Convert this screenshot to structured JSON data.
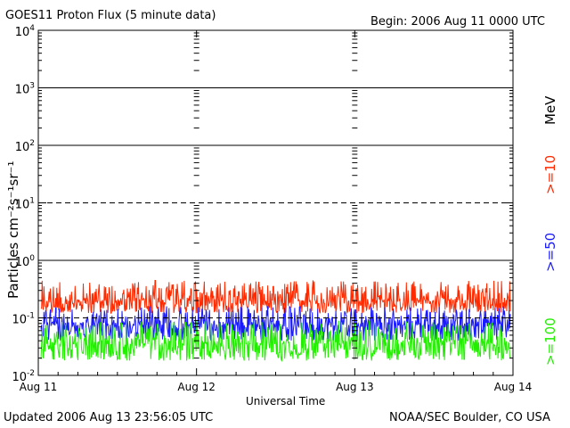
{
  "header": {
    "title": "GOES11 Proton Flux (5 minute data)",
    "begin": "Begin: 2006 Aug 11 0000 UTC"
  },
  "footer": {
    "updated": "Updated 2006 Aug 13 23:56:05 UTC",
    "credit": "NOAA/SEC Boulder, CO USA"
  },
  "chart_data": {
    "type": "line",
    "title": "GOES11 Proton Flux (5 minute data)",
    "xlabel": "Universal Time",
    "ylabel": "Particles cm⁻²s⁻¹sr⁻¹",
    "y_scale": "log",
    "ylim": [
      0.01,
      10000
    ],
    "y_ticks": [
      {
        "base": "10",
        "exp": "-2",
        "value": 0.01
      },
      {
        "base": "10",
        "exp": "-1",
        "value": 0.1
      },
      {
        "base": "10",
        "exp": "0",
        "value": 1
      },
      {
        "base": "10",
        "exp": "1",
        "value": 10
      },
      {
        "base": "10",
        "exp": "2",
        "value": 100
      },
      {
        "base": "10",
        "exp": "3",
        "value": 1000
      },
      {
        "base": "10",
        "exp": "4",
        "value": 10000
      }
    ],
    "x_ticks": [
      "Aug 11",
      "Aug 12",
      "Aug 13",
      "Aug 14"
    ],
    "horizontal_lines": [
      {
        "value": 10,
        "style": "dashed"
      },
      {
        "value": 0.1,
        "style": "dashed"
      },
      {
        "value": 1,
        "style": "solid"
      },
      {
        "value": 100,
        "style": "solid"
      },
      {
        "value": 1000,
        "style": "solid"
      }
    ],
    "energy_unit": "MeV",
    "series": [
      {
        "name": ">=10",
        "color": "#ff2a00",
        "range": [
          0.12,
          0.45
        ],
        "typical": 0.2
      },
      {
        "name": ">=50",
        "color": "#1a1aff",
        "range": [
          0.04,
          0.16
        ],
        "typical": 0.075
      },
      {
        "name": ">=100",
        "color": "#22ee00",
        "range": [
          0.018,
          0.09
        ],
        "typical": 0.035
      }
    ]
  }
}
